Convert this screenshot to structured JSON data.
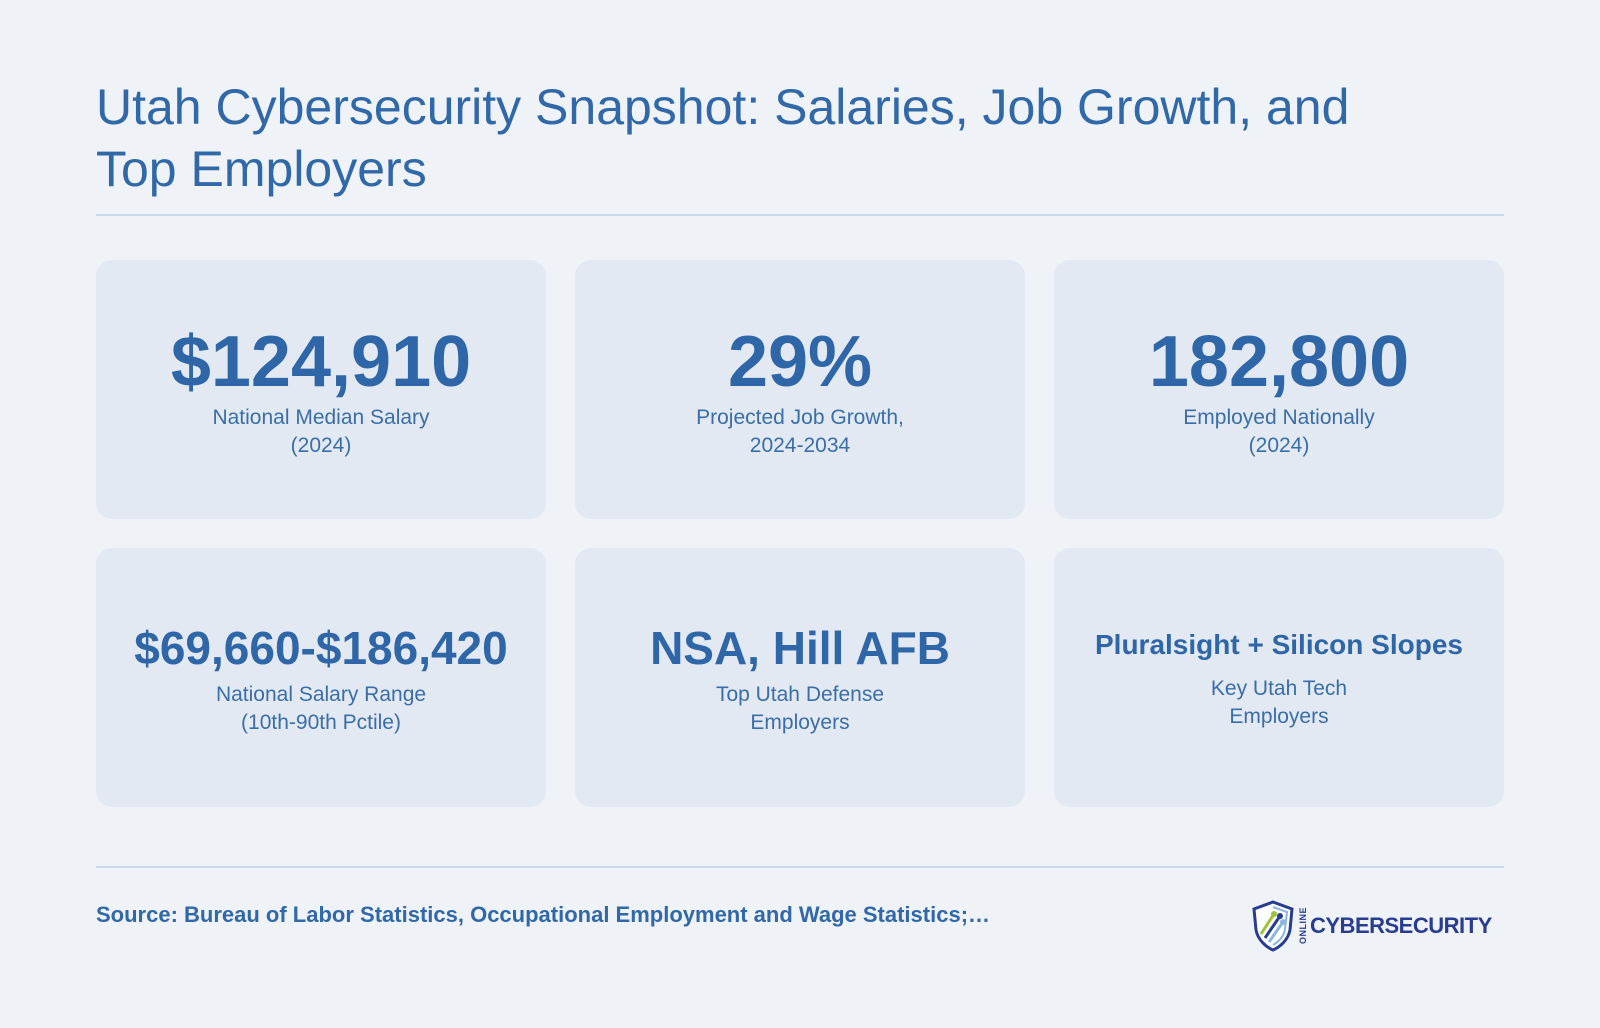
{
  "title": "Utah Cybersecurity Snapshot: Salaries, Job Growth, and Top Employers",
  "cards": [
    {
      "value": "$124,910",
      "label": "National Median Salary\n(2024)"
    },
    {
      "value": "29%",
      "label": "Projected Job Growth,\n2024-2034"
    },
    {
      "value": "182,800",
      "label": "Employed Nationally\n(2024)"
    },
    {
      "value": "$69,660-$186,420",
      "label": "National Salary Range\n(10th-90th Pctile)"
    },
    {
      "value": "NSA, Hill AFB",
      "label": "Top Utah Defense\nEmployers"
    },
    {
      "value": "Pluralsight + Silicon Slopes",
      "label": "Key Utah Tech\nEmployers"
    }
  ],
  "source": "Source: Bureau of Labor Statistics, Occupational Employment and Wage Statistics;…",
  "logo": {
    "small_text": "ONLINE",
    "word": "CYBERSECURITY",
    "icon": "shield-circuit-icon",
    "colors": {
      "navy": "#283c91",
      "green": "#9fc43a",
      "lightblue": "#8ab8e0"
    }
  },
  "colors": {
    "background": "#eff3f8",
    "card": "#e2e9f2",
    "accent": "#2f66a7"
  }
}
